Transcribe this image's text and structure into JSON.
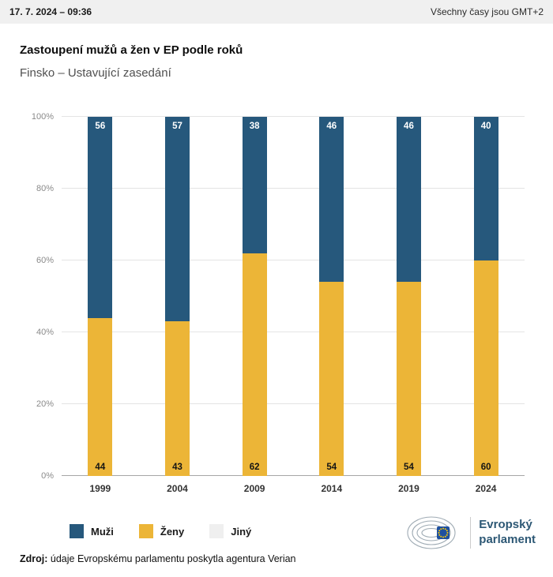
{
  "header": {
    "datetime": "17. 7. 2024 – 09:36",
    "timezone_note": "Všechny časy jsou GMT+2"
  },
  "title": "Zastoupení mužů a žen v EP podle roků",
  "subtitle": "Finsko – Ustavující zasedání",
  "chart_data": {
    "type": "bar",
    "stacked": true,
    "title": "Zastoupení mužů a žen v EP podle roků",
    "subtitle": "Finsko – Ustavující zasedání",
    "categories": [
      "1999",
      "2004",
      "2009",
      "2014",
      "2019",
      "2024"
    ],
    "series": [
      {
        "key": "muzi",
        "name": "Muži",
        "color": "#26587C",
        "label_color": "#FFFFFF",
        "values": [
          56,
          57,
          38,
          46,
          46,
          40
        ]
      },
      {
        "key": "zeny",
        "name": "Ženy",
        "color": "#ECB537",
        "label_color": "#141414",
        "values": [
          44,
          43,
          62,
          54,
          54,
          60
        ]
      }
    ],
    "stack_order_bottom_to_top": [
      "zeny",
      "muzi"
    ],
    "ylim": [
      0,
      100
    ],
    "yticks": [
      "0%",
      "20%",
      "40%",
      "60%",
      "80%",
      "100%"
    ],
    "grid": true,
    "legend_position": "bottom-left",
    "legend": [
      {
        "key": "muzi",
        "label": "Muži",
        "color": "#26587C"
      },
      {
        "key": "zeny",
        "label": "Ženy",
        "color": "#ECB537"
      },
      {
        "key": "jiny",
        "label": "Jiný",
        "color": "#EFEFEF"
      }
    ]
  },
  "footer": {
    "source_label": "Zdroj:",
    "source_text": "údaje Evropskému parlamentu poskytla agentura Verian",
    "logo": {
      "line1": "Evropský",
      "line2": "parlament"
    }
  }
}
